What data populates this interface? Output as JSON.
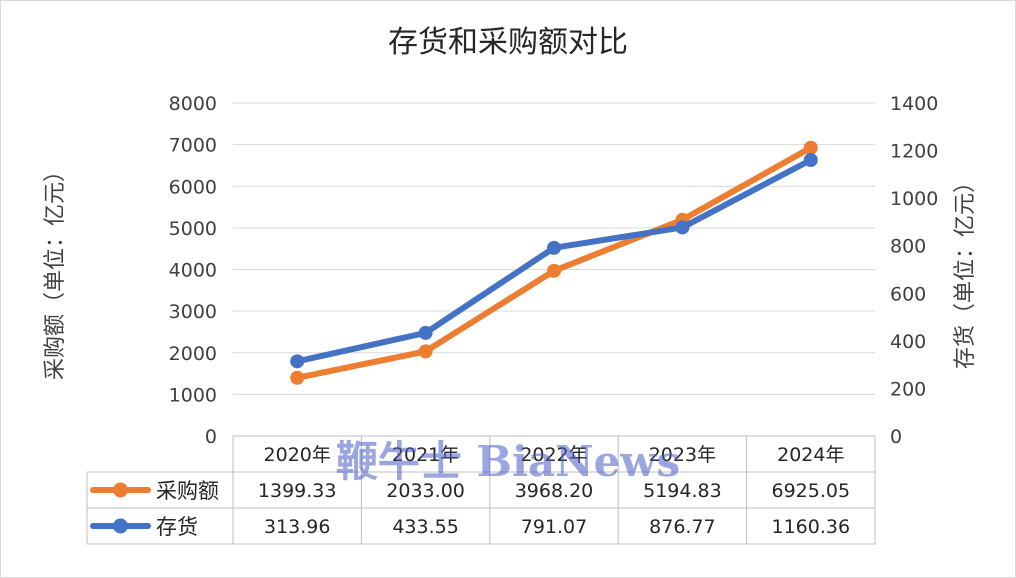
{
  "chart_data": {
    "type": "line",
    "title": "存货和采购额对比",
    "categories": [
      "2020年",
      "2021年",
      "2022年",
      "2023年",
      "2024年"
    ],
    "ylabel_left": "采购额（单位：亿元）",
    "ylabel_right": "存货（单位：亿元）",
    "ylim_left": [
      0,
      8000
    ],
    "ylim_right": [
      0,
      1400
    ],
    "yticks_left": [
      "0",
      "1000",
      "2000",
      "3000",
      "4000",
      "5000",
      "6000",
      "7000",
      "8000"
    ],
    "yticks_right": [
      "0",
      "200",
      "400",
      "600",
      "800",
      "1000",
      "1200",
      "1400"
    ],
    "grid": true,
    "legend": "data-table",
    "series": [
      {
        "name": "采购额",
        "axis": "left",
        "color": "#ED7D31",
        "values": [
          1399.33,
          2033.0,
          3968.2,
          5194.83,
          6925.05
        ],
        "labels": [
          "1399.33",
          "2033.00",
          "3968.20",
          "5194.83",
          "6925.05"
        ]
      },
      {
        "name": "存货",
        "axis": "right",
        "color": "#4472C4",
        "values": [
          313.96,
          433.55,
          791.07,
          876.77,
          1160.36
        ],
        "labels": [
          "313.96",
          "433.55",
          "791.07",
          "876.77",
          "1160.36"
        ]
      }
    ]
  },
  "watermark": "鞭牛士 BiaNews"
}
